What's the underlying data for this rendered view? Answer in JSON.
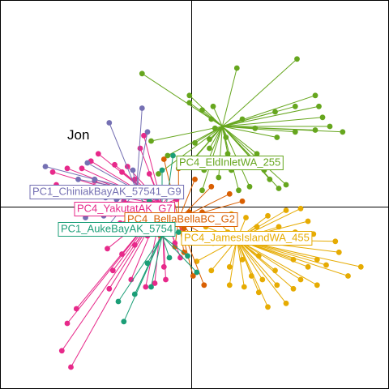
{
  "chart_data": {
    "type": "scatter",
    "variant": "star-plot with group centroids and labels",
    "title": "Jon",
    "xlabel": "",
    "ylabel": "",
    "xlim": [
      -1,
      1
    ],
    "ylim": [
      -1,
      1
    ],
    "grid": false,
    "axes_through_origin": true,
    "series": [
      {
        "name": "PC4_EldInletWA_255",
        "color": "#66a61e",
        "centroid": [
          0.17,
          0.44
        ],
        "points": [
          [
            -0.27,
            0.73
          ],
          [
            0.25,
            0.76
          ],
          [
            0.58,
            0.81
          ],
          [
            0.46,
            0.52
          ],
          [
            0.68,
            0.61
          ],
          [
            0.57,
            0.55
          ],
          [
            0.7,
            0.55
          ],
          [
            0.72,
            0.49
          ],
          [
            0.76,
            0.44
          ],
          [
            0.68,
            0.42
          ],
          [
            0.83,
            0.41
          ],
          [
            0.57,
            0.41
          ],
          [
            0.47,
            0.38
          ],
          [
            0.35,
            0.43
          ],
          [
            0.28,
            0.48
          ],
          [
            0.13,
            0.43
          ],
          [
            0.11,
            0.48
          ],
          [
            0.12,
            0.55
          ],
          [
            0.06,
            0.53
          ],
          [
            -0.01,
            0.57
          ],
          [
            -0.01,
            0.61
          ],
          [
            0.02,
            0.35
          ],
          [
            0.1,
            0.32
          ],
          [
            0.01,
            0.26
          ],
          [
            0.07,
            0.2
          ],
          [
            0.2,
            0.29
          ],
          [
            0.22,
            0.2
          ],
          [
            0.36,
            0.29
          ],
          [
            0.4,
            0.2
          ],
          [
            0.43,
            0.15
          ],
          [
            0.48,
            0.1
          ],
          [
            0.52,
            0.12
          ],
          [
            0.32,
            0.11
          ],
          [
            0.26,
            0.09
          ],
          [
            0.06,
            0.09
          ],
          [
            0.15,
            0.16
          ],
          [
            -0.22,
            0.36
          ],
          [
            -0.18,
            0.18
          ],
          [
            -0.13,
            0.28
          ],
          [
            -0.02,
            0.22
          ],
          [
            0.1,
            0.37
          ],
          [
            0.19,
            0.38
          ]
        ]
      },
      {
        "name": "PC4_JamesIslandWA_455",
        "color": "#e6ab02",
        "centroid": [
          0.25,
          -0.18
        ],
        "points": [
          [
            0.42,
            -0.05
          ],
          [
            0.52,
            -0.02
          ],
          [
            0.6,
            -0.01
          ],
          [
            0.64,
            -0.08
          ],
          [
            0.48,
            -0.11
          ],
          [
            0.57,
            -0.14
          ],
          [
            0.67,
            -0.15
          ],
          [
            0.79,
            -0.19
          ],
          [
            0.81,
            -0.25
          ],
          [
            0.93,
            -0.33
          ],
          [
            0.86,
            -0.38
          ],
          [
            0.74,
            -0.32
          ],
          [
            0.69,
            -0.29
          ],
          [
            0.64,
            -0.33
          ],
          [
            0.56,
            -0.29
          ],
          [
            0.46,
            -0.35
          ],
          [
            0.37,
            -0.27
          ],
          [
            0.28,
            -0.29
          ],
          [
            0.21,
            -0.33
          ],
          [
            0.33,
            -0.38
          ],
          [
            0.39,
            -0.4
          ],
          [
            0.47,
            -0.43
          ],
          [
            0.56,
            -0.45
          ],
          [
            0.6,
            -0.4
          ],
          [
            0.69,
            -0.43
          ],
          [
            0.52,
            -0.53
          ],
          [
            0.42,
            -0.55
          ],
          [
            0.37,
            -0.47
          ],
          [
            0.29,
            -0.44
          ],
          [
            0.21,
            -0.43
          ],
          [
            0.11,
            -0.35
          ],
          [
            0.03,
            -0.3
          ],
          [
            0.12,
            -0.2
          ],
          [
            0.2,
            -0.14
          ],
          [
            0.3,
            -0.16
          ],
          [
            0.36,
            -0.11
          ],
          [
            0.44,
            -0.17
          ],
          [
            0.3,
            -0.06
          ],
          [
            0.22,
            -0.04
          ],
          [
            0.13,
            -0.07
          ],
          [
            0.08,
            -0.11
          ]
        ]
      },
      {
        "name": "PC4_BellaBellaBC_G2",
        "color": "#d95f02",
        "centroid": [
          -0.07,
          -0.07
        ],
        "points": [
          [
            -0.15,
            0.26
          ],
          [
            -0.07,
            0.21
          ],
          [
            0.02,
            0.15
          ],
          [
            0.11,
            0.11
          ],
          [
            0.21,
            0.07
          ],
          [
            0.28,
            0.03
          ],
          [
            -0.01,
            -0.03
          ],
          [
            -0.04,
            -0.12
          ],
          [
            -0.12,
            -0.1
          ],
          [
            -0.17,
            -0.16
          ],
          [
            -0.23,
            -0.14
          ],
          [
            -0.09,
            -0.22
          ],
          [
            -0.04,
            -0.25
          ],
          [
            0.02,
            -0.18
          ],
          [
            0.08,
            -0.16
          ],
          [
            0.13,
            -0.06
          ],
          [
            -0.19,
            -0.05
          ],
          [
            -0.26,
            -0.06
          ],
          [
            0.06,
            -0.03
          ],
          [
            0.18,
            -0.05
          ],
          [
            0.01,
            -0.38
          ],
          [
            0.07,
            -0.43
          ]
        ]
      },
      {
        "name": "PC4_YakutatAK_G7",
        "color": "#e7298a",
        "centroid": [
          -0.16,
          0.01
        ],
        "points": [
          [
            -0.26,
            0.39
          ],
          [
            -0.28,
            0.32
          ],
          [
            -0.35,
            0.22
          ],
          [
            -0.42,
            0.23
          ],
          [
            -0.51,
            0.29
          ],
          [
            -0.55,
            0.25
          ],
          [
            -0.6,
            0.21
          ],
          [
            -0.68,
            0.21
          ],
          [
            -0.76,
            0.19
          ],
          [
            -0.74,
            0.12
          ],
          [
            -0.53,
            0.14
          ],
          [
            -0.38,
            0.19
          ],
          [
            -0.31,
            0.15
          ],
          [
            -0.23,
            0.18
          ],
          [
            -0.22,
            0.09
          ],
          [
            -0.28,
            0.06
          ],
          [
            -0.37,
            0.03
          ],
          [
            -0.44,
            -0.04
          ],
          [
            -0.39,
            -0.09
          ],
          [
            -0.3,
            -0.12
          ],
          [
            -0.24,
            -0.16
          ],
          [
            -0.31,
            -0.21
          ],
          [
            -0.38,
            -0.26
          ],
          [
            -0.43,
            -0.35
          ],
          [
            -0.33,
            -0.4
          ],
          [
            -0.25,
            -0.44
          ],
          [
            -0.2,
            -0.42
          ],
          [
            -0.14,
            -0.4
          ],
          [
            -0.06,
            -0.28
          ],
          [
            -0.09,
            -0.2
          ],
          [
            -0.01,
            -0.18
          ],
          [
            -0.45,
            -0.45
          ],
          [
            -0.63,
            -0.56
          ],
          [
            -0.71,
            -0.79
          ],
          [
            -0.68,
            -0.64
          ],
          [
            -0.66,
            -0.88
          ],
          [
            -0.46,
            -0.23
          ],
          [
            -0.15,
            -0.33
          ],
          [
            -0.12,
            0.06
          ],
          [
            -0.08,
            0.04
          ]
        ]
      },
      {
        "name": "PC1_ChiniakBayAK_57541_G9",
        "color": "#7570b3",
        "centroid": [
          -0.3,
          0.09
        ],
        "points": [
          [
            -0.8,
            0.22
          ],
          [
            -0.57,
            0.24
          ],
          [
            -0.53,
            0.15
          ],
          [
            -0.62,
            0.15
          ],
          [
            -0.45,
            0.46
          ],
          [
            -0.27,
            0.54
          ],
          [
            -0.24,
            0.41
          ],
          [
            -0.47,
            0.05
          ],
          [
            -0.41,
            0.04
          ],
          [
            -0.38,
            0.1
          ],
          [
            -0.32,
            0.2
          ],
          [
            -0.19,
            0.05
          ],
          [
            -0.15,
            0.09
          ],
          [
            -0.58,
            -0.06
          ],
          [
            -0.48,
            -0.05
          ],
          [
            -0.46,
            -0.11
          ]
        ]
      },
      {
        "name": "PC1_AukeBayAK_5754",
        "color": "#1b9e77",
        "centroid": [
          -0.16,
          -0.16
        ],
        "points": [
          [
            -0.16,
            0.2
          ],
          [
            -0.1,
            0.28
          ],
          [
            -0.3,
            0.09
          ],
          [
            -0.23,
            0.03
          ],
          [
            -0.12,
            -0.06
          ],
          [
            -0.07,
            -0.14
          ],
          [
            -0.02,
            -0.27
          ],
          [
            -0.12,
            -0.28
          ],
          [
            -0.24,
            -0.31
          ],
          [
            -0.22,
            -0.44
          ],
          [
            -0.31,
            -0.48
          ],
          [
            -0.37,
            -0.63
          ],
          [
            -0.4,
            -0.52
          ],
          [
            0.03,
            -0.36
          ]
        ]
      }
    ],
    "labels": [
      {
        "text": "PC4_EldInletWA_255",
        "series": 0
      },
      {
        "text": "PC1_ChiniakBayAK_57541_G9",
        "series": 4
      },
      {
        "text": "PC4_YakutatAK_G7",
        "series": 3
      },
      {
        "text": "PC4_BellaBellaBC_G2",
        "series": 2
      },
      {
        "text": "PC1_AukeBayAK_5754",
        "series": 5
      },
      {
        "text": "PC4_JamesIslandWA_455",
        "series": 1
      }
    ]
  }
}
